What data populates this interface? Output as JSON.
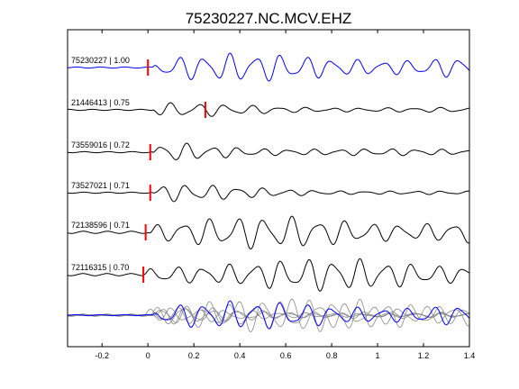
{
  "chart_data": {
    "type": "line",
    "title": "75230227.NC.MCV.EHZ",
    "xlabel": "",
    "ylabel": "",
    "xlim": [
      -0.35,
      1.4
    ],
    "x_ticks": [
      "-0.2",
      "0",
      "0.2",
      "0.4",
      "0.6",
      "0.8",
      "1",
      "1.2",
      "1.4"
    ],
    "x_tick_values": [
      -0.2,
      0,
      0.2,
      0.4,
      0.6,
      0.8,
      1.0,
      1.2,
      1.4
    ],
    "grid": false,
    "colors": {
      "primary": "#0000ff",
      "other": "#000000",
      "stack_other": "#888888",
      "pick": "#ff0000"
    },
    "series": [
      {
        "name": "75230227 | 1.00",
        "id": "75230227",
        "cc": "1.00",
        "color": "#0000ff",
        "pick_time": 0.0,
        "params": {
          "onset": 0.02,
          "amp": 12,
          "freq": 9,
          "decay": 0.0,
          "noise": 1,
          "seed": 3
        }
      },
      {
        "name": "21446413 | 0.75",
        "id": "21446413",
        "cc": "0.75",
        "color": "#000000",
        "pick_time": 0.25,
        "params": {
          "onset": 0.02,
          "amp": 7,
          "freq": 8.5,
          "decay": 0.9,
          "noise": 1,
          "seed": 7
        }
      },
      {
        "name": "73559016 | 0.72",
        "id": "73559016",
        "cc": "0.72",
        "color": "#000000",
        "pick_time": 0.01,
        "params": {
          "onset": 0.02,
          "amp": 10,
          "freq": 9,
          "decay": 1.1,
          "noise": 1,
          "seed": 11
        }
      },
      {
        "name": "73527021 | 0.71",
        "id": "73527021",
        "cc": "0.71",
        "color": "#000000",
        "pick_time": 0.01,
        "params": {
          "onset": 0.02,
          "amp": 9,
          "freq": 9,
          "decay": 1.3,
          "noise": 1,
          "seed": 17
        }
      },
      {
        "name": "72138596 | 0.71",
        "id": "72138596",
        "cc": "0.71",
        "color": "#000000",
        "pick_time": -0.01,
        "params": {
          "onset": 0.0,
          "amp": 14,
          "freq": 8.5,
          "decay": 0.0,
          "noise": 2,
          "seed": 23
        }
      },
      {
        "name": "72116315 | 0.70",
        "id": "72116315",
        "cc": "0.70",
        "color": "#000000",
        "pick_time": -0.02,
        "params": {
          "onset": -0.02,
          "amp": 14,
          "freq": 8.8,
          "decay": 0.0,
          "noise": 2,
          "seed": 29
        }
      }
    ]
  }
}
